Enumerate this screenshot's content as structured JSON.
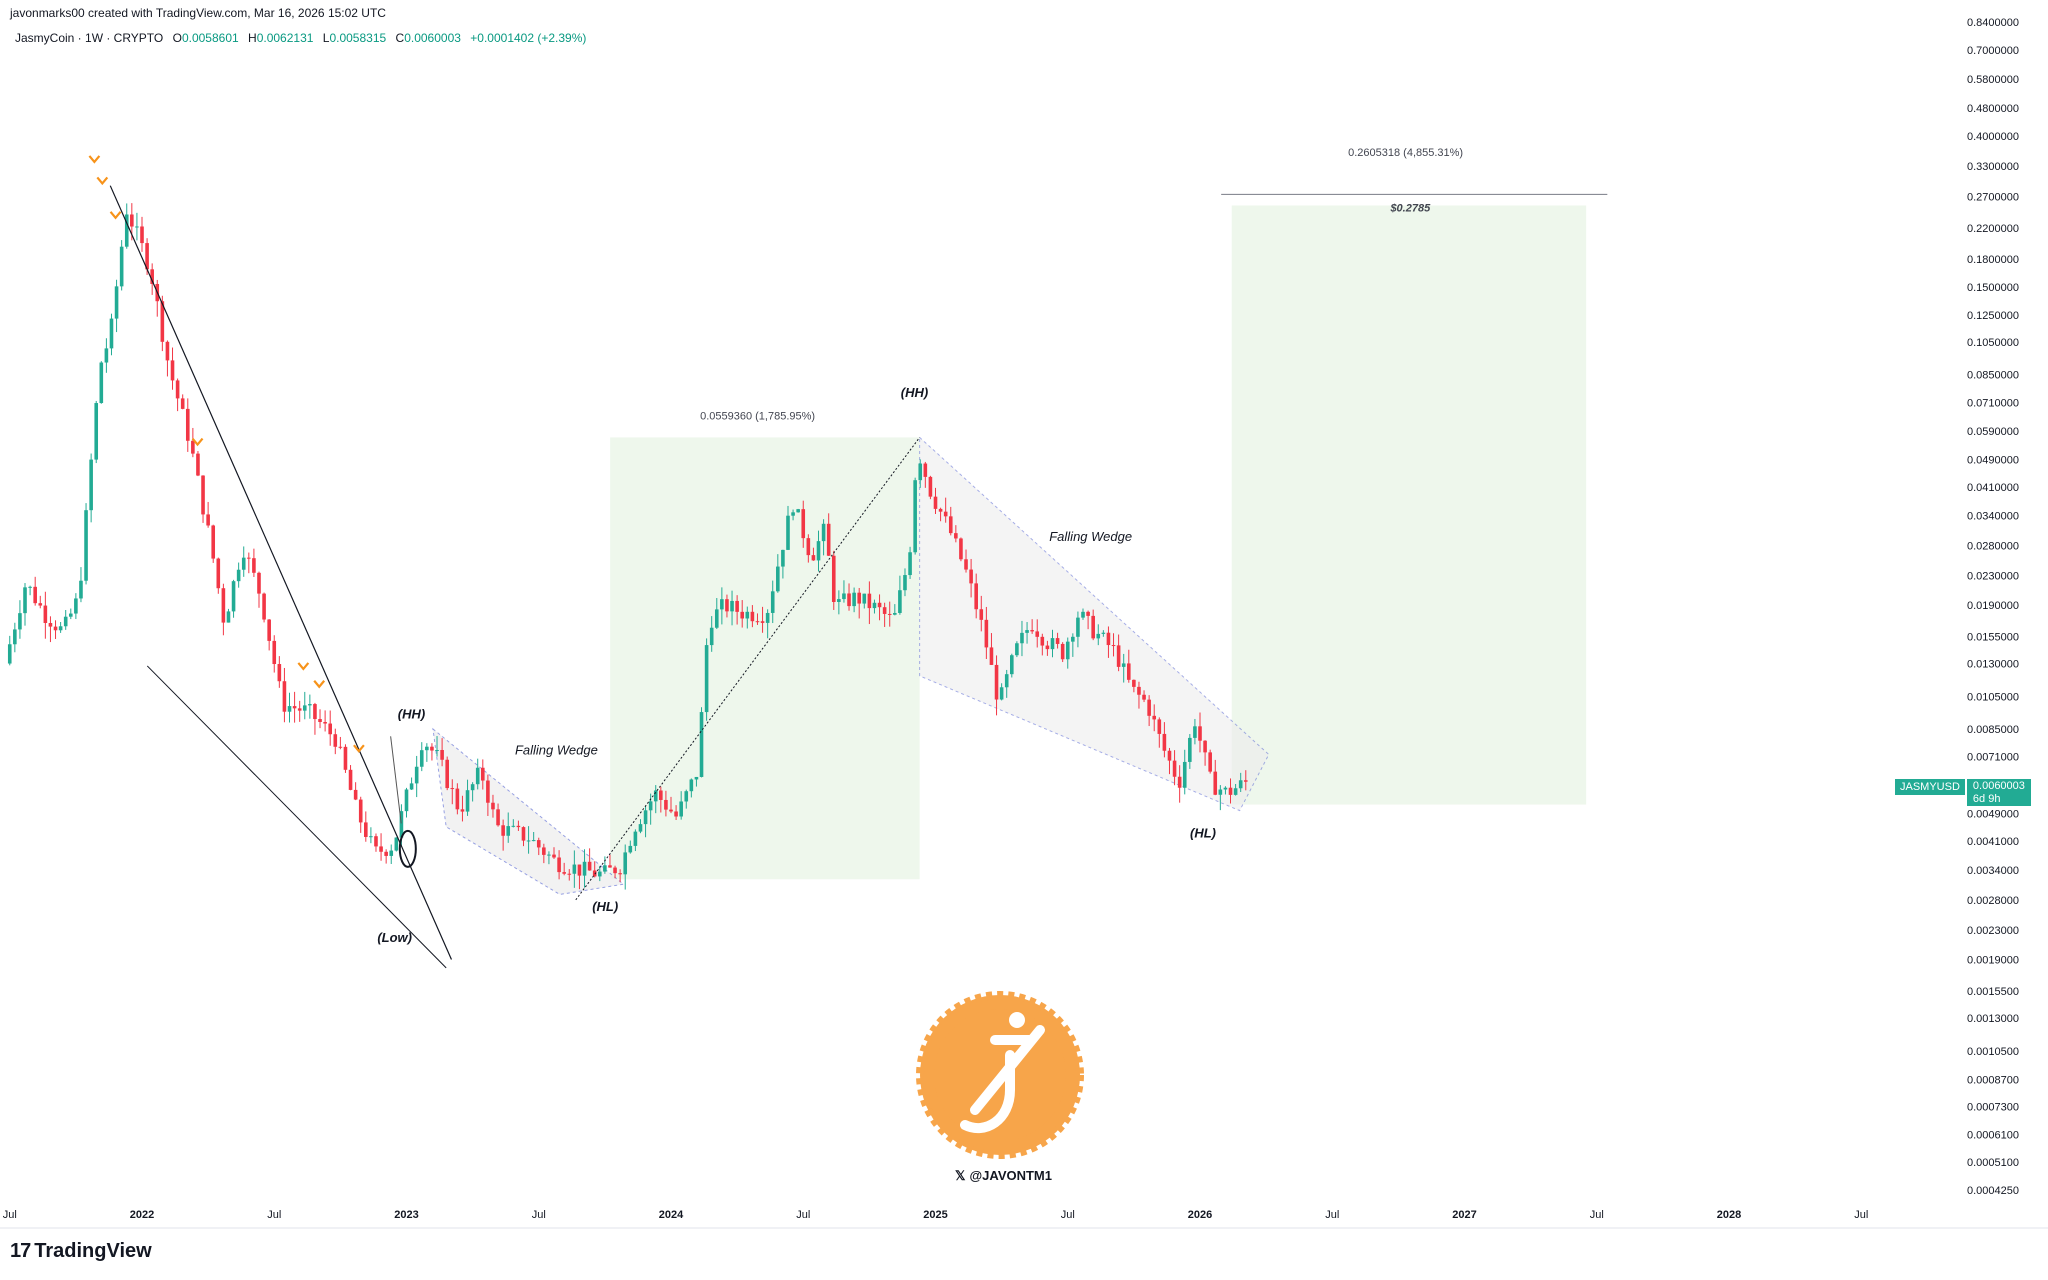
{
  "header": {
    "credit": "javonmarks00 created with TradingView.com, Mar 16, 2026 15:02 UTC",
    "symbol": "JasmyCoin · 1W · CRYPTO",
    "o_label": "O",
    "o_value": "0.0058601",
    "h_label": "H",
    "h_value": "0.0062131",
    "l_label": "L",
    "l_value": "0.0058315",
    "c_label": "C",
    "c_value": "0.0060003",
    "change": "+0.0001402 (+2.39%)"
  },
  "footer": {
    "brand": "TradingView",
    "handle": "@JAVONTM1"
  },
  "price_tag": {
    "symbol": "JASMYUSD",
    "price": "0.0060003",
    "countdown": "6d 9h"
  },
  "colors": {
    "up": "#089981",
    "candle_up": "#22ab94",
    "candle_down": "#f23645",
    "zone": "#eef7ec",
    "wedge": "#ededed",
    "marker": "#f7931a",
    "logo": "#f7a54a"
  },
  "chart_data": {
    "type": "candlestick",
    "title": "",
    "y_scale": "log",
    "ylim": [
      0.000425,
      0.84
    ],
    "y_ticks": [
      "0.8400000",
      "0.7000000",
      "0.5800000",
      "0.4800000",
      "0.4000000",
      "0.3300000",
      "0.2700000",
      "0.2200000",
      "0.1800000",
      "0.1500000",
      "0.1250000",
      "0.1050000",
      "0.0850000",
      "0.0710000",
      "0.0590000",
      "0.0490000",
      "0.0410000",
      "0.0340000",
      "0.0280000",
      "0.0230000",
      "0.0190000",
      "0.0155000",
      "0.0130000",
      "0.0105000",
      "0.0085000",
      "0.0071000",
      "0.0049000",
      "0.0041000",
      "0.0034000",
      "0.0028000",
      "0.0023000",
      "0.0019000",
      "0.0015500",
      "0.0013000",
      "0.0010500",
      "0.0008700",
      "0.0007300",
      "0.0006100",
      "0.0005100",
      "0.0004250"
    ],
    "x_ticks": [
      {
        "label": "Jul",
        "t": 2021.5,
        "bold": false
      },
      {
        "label": "2022",
        "t": 2022.0,
        "bold": true
      },
      {
        "label": "Jul",
        "t": 2022.5,
        "bold": false
      },
      {
        "label": "2023",
        "t": 2023.0,
        "bold": true
      },
      {
        "label": "Jul",
        "t": 2023.5,
        "bold": false
      },
      {
        "label": "2024",
        "t": 2024.0,
        "bold": true
      },
      {
        "label": "Jul",
        "t": 2024.5,
        "bold": false
      },
      {
        "label": "2025",
        "t": 2025.0,
        "bold": true
      },
      {
        "label": "Jul",
        "t": 2025.5,
        "bold": false
      },
      {
        "label": "2026",
        "t": 2026.0,
        "bold": true
      },
      {
        "label": "Jul",
        "t": 2026.5,
        "bold": false
      },
      {
        "label": "2027",
        "t": 2027.0,
        "bold": true
      },
      {
        "label": "Jul",
        "t": 2027.5,
        "bold": false
      },
      {
        "label": "2028",
        "t": 2028.0,
        "bold": true
      },
      {
        "label": "Jul",
        "t": 2028.5,
        "bold": false
      }
    ],
    "anchors": [
      [
        2021.5,
        0.013
      ],
      [
        2021.58,
        0.022
      ],
      [
        2021.65,
        0.018
      ],
      [
        2021.72,
        0.016
      ],
      [
        2021.78,
        0.02
      ],
      [
        2021.86,
        0.09
      ],
      [
        2021.9,
        0.11
      ],
      [
        2021.96,
        0.25
      ],
      [
        2022.05,
        0.17
      ],
      [
        2022.12,
        0.09
      ],
      [
        2022.2,
        0.055
      ],
      [
        2022.28,
        0.028
      ],
      [
        2022.33,
        0.017
      ],
      [
        2022.4,
        0.028
      ],
      [
        2022.47,
        0.02
      ],
      [
        2022.55,
        0.01
      ],
      [
        2022.65,
        0.0095
      ],
      [
        2022.75,
        0.008
      ],
      [
        2022.83,
        0.005
      ],
      [
        2022.9,
        0.0038
      ],
      [
        2022.97,
        0.004
      ],
      [
        2023.02,
        0.0055
      ],
      [
        2023.08,
        0.008
      ],
      [
        2023.14,
        0.007
      ],
      [
        2023.22,
        0.005
      ],
      [
        2023.3,
        0.0065
      ],
      [
        2023.36,
        0.0045
      ],
      [
        2023.48,
        0.0042
      ],
      [
        2023.58,
        0.0036
      ],
      [
        2023.68,
        0.0034
      ],
      [
        2023.76,
        0.0033
      ],
      [
        2023.83,
        0.0035
      ],
      [
        2023.88,
        0.0045
      ],
      [
        2023.96,
        0.0056
      ],
      [
        2024.04,
        0.0048
      ],
      [
        2024.12,
        0.0065
      ],
      [
        2024.16,
        0.017
      ],
      [
        2024.22,
        0.019
      ],
      [
        2024.3,
        0.018
      ],
      [
        2024.38,
        0.018
      ],
      [
        2024.44,
        0.028
      ],
      [
        2024.48,
        0.037
      ],
      [
        2024.55,
        0.026
      ],
      [
        2024.6,
        0.031
      ],
      [
        2024.64,
        0.019
      ],
      [
        2024.72,
        0.02
      ],
      [
        2024.8,
        0.0185
      ],
      [
        2024.86,
        0.017
      ],
      [
        2024.92,
        0.026
      ],
      [
        2024.95,
        0.053
      ],
      [
        2025.0,
        0.04
      ],
      [
        2025.08,
        0.03
      ],
      [
        2025.14,
        0.023
      ],
      [
        2025.2,
        0.016
      ],
      [
        2025.26,
        0.01
      ],
      [
        2025.32,
        0.014
      ],
      [
        2025.38,
        0.017
      ],
      [
        2025.44,
        0.015
      ],
      [
        2025.5,
        0.014
      ],
      [
        2025.56,
        0.018
      ],
      [
        2025.62,
        0.016
      ],
      [
        2025.7,
        0.014
      ],
      [
        2025.76,
        0.011
      ],
      [
        2025.82,
        0.01
      ],
      [
        2025.88,
        0.0075
      ],
      [
        2025.94,
        0.006
      ],
      [
        2026.0,
        0.009
      ],
      [
        2026.06,
        0.006
      ],
      [
        2026.12,
        0.0056
      ],
      [
        2026.19,
        0.006
      ]
    ],
    "last_bar": {
      "open": 0.0058601,
      "high": 0.0062131,
      "low": 0.0058315,
      "close": 0.0060003
    },
    "annotations": {
      "hh_left": "(HH)",
      "low": "(Low)",
      "hl_left": "(HL)",
      "hh_right": "(HH)",
      "hl_right": "(HL)",
      "wedge_left": "Falling Wedge",
      "wedge_right": "Falling Wedge",
      "measure_mid": "0.0559360 (1,785.95%)",
      "measure_target": "0.2605318 (4,855.31%)",
      "target_price": "$0.2785"
    }
  }
}
